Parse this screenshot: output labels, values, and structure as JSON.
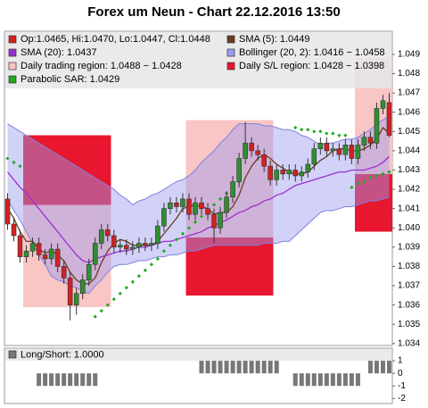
{
  "chart_data": [
    {
      "type": "candlestick",
      "title": "Forex um Neun - Chart 22.12.2016 13:50",
      "candle_legend": "Op:1.0465, Hi:1.0470, Lo:1.0447, Cl:1.0448",
      "up_color": "#2f8f2f",
      "down_color": "#d42020",
      "open": [
        1.0415,
        1.0402,
        1.0396,
        1.0385,
        1.0388,
        1.0392,
        1.0386,
        1.0384,
        1.0389,
        1.038,
        1.0374,
        1.036,
        1.0366,
        1.0373,
        1.0381,
        1.0392,
        1.0399,
        1.0396,
        1.039,
        1.0391,
        1.0389,
        1.039,
        1.0392,
        1.0391,
        1.0392,
        1.0401,
        1.041,
        1.0413,
        1.0411,
        1.0415,
        1.0407,
        1.0413,
        1.041,
        1.0407,
        1.04,
        1.0408,
        1.0416,
        1.0424,
        1.0436,
        1.0444,
        1.044,
        1.0438,
        1.0432,
        1.0425,
        1.043,
        1.0428,
        1.043,
        1.0427,
        1.0429,
        1.0433,
        1.0441,
        1.0444,
        1.044,
        1.0441,
        1.0438,
        1.0443,
        1.0436,
        1.0443,
        1.0447,
        1.0444,
        1.0462,
        1.0465
      ],
      "high": [
        1.0418,
        1.0405,
        1.0399,
        1.0391,
        1.0395,
        1.0395,
        1.0389,
        1.0392,
        1.0392,
        1.0383,
        1.0377,
        1.0369,
        1.0376,
        1.0384,
        1.0395,
        1.0402,
        1.0402,
        1.0399,
        1.0394,
        1.0394,
        1.0393,
        1.0395,
        1.0395,
        1.0395,
        1.0404,
        1.0413,
        1.0416,
        1.0416,
        1.0418,
        1.0418,
        1.0416,
        1.0416,
        1.0413,
        1.041,
        1.0411,
        1.0419,
        1.0427,
        1.0439,
        1.0455,
        1.0447,
        1.0443,
        1.0441,
        1.0435,
        1.0433,
        1.0433,
        1.0433,
        1.0433,
        1.0432,
        1.0436,
        1.0444,
        1.0447,
        1.0447,
        1.0444,
        1.0444,
        1.0446,
        1.0446,
        1.0446,
        1.045,
        1.045,
        1.0465,
        1.0469,
        1.047
      ],
      "low": [
        1.0399,
        1.0393,
        1.0382,
        1.0382,
        1.0385,
        1.0383,
        1.0381,
        1.0381,
        1.0377,
        1.0371,
        1.0352,
        1.0355,
        1.0363,
        1.037,
        1.0378,
        1.0389,
        1.0393,
        1.0387,
        1.0387,
        1.0386,
        1.0386,
        1.0387,
        1.0388,
        1.0388,
        1.0389,
        1.0398,
        1.0407,
        1.0408,
        1.0408,
        1.0404,
        1.0404,
        1.0407,
        1.0404,
        1.0392,
        1.0397,
        1.0405,
        1.0413,
        1.0421,
        1.0433,
        1.0437,
        1.0435,
        1.0429,
        1.0422,
        1.0422,
        1.0425,
        1.0425,
        1.0424,
        1.0424,
        1.0426,
        1.043,
        1.0438,
        1.0437,
        1.0437,
        1.0435,
        1.0435,
        1.0433,
        1.0433,
        1.044,
        1.0441,
        1.0441,
        1.0459,
        1.0447
      ],
      "close": [
        1.0402,
        1.0396,
        1.0385,
        1.0388,
        1.0392,
        1.0386,
        1.0384,
        1.0389,
        1.038,
        1.0374,
        1.036,
        1.0366,
        1.0373,
        1.0381,
        1.0392,
        1.0399,
        1.0396,
        1.039,
        1.0391,
        1.0389,
        1.039,
        1.0392,
        1.0391,
        1.0392,
        1.0401,
        1.041,
        1.0413,
        1.0411,
        1.0415,
        1.0407,
        1.0413,
        1.041,
        1.0407,
        1.04,
        1.0408,
        1.0416,
        1.0424,
        1.0436,
        1.0444,
        1.044,
        1.0438,
        1.0432,
        1.0425,
        1.043,
        1.0428,
        1.043,
        1.0427,
        1.0429,
        1.0433,
        1.0441,
        1.0444,
        1.044,
        1.0441,
        1.0438,
        1.0443,
        1.0436,
        1.0443,
        1.0447,
        1.0444,
        1.0462,
        1.0466,
        1.0448
      ],
      "series": [
        {
          "name": "SMA (5): 1.0449",
          "kind": "line",
          "color": "#6b3b1b",
          "values": [
            1.041,
            1.0405,
            1.0398,
            1.0393,
            1.0393,
            1.0389,
            1.0387,
            1.0388,
            1.0386,
            1.0383,
            1.0377,
            1.0373,
            1.0371,
            1.0371,
            1.0374,
            1.0382,
            1.0388,
            1.0392,
            1.0394,
            1.0393,
            1.0391,
            1.0391,
            1.0391,
            1.0391,
            1.0393,
            1.0397,
            1.0401,
            1.0405,
            1.041,
            1.0411,
            1.0412,
            1.0411,
            1.041,
            1.0407,
            1.0408,
            1.0408,
            1.0411,
            1.0417,
            1.0426,
            1.0432,
            1.0436,
            1.0438,
            1.0436,
            1.0433,
            1.0431,
            1.0429,
            1.0428,
            1.0428,
            1.0429,
            1.0432,
            1.0435,
            1.0437,
            1.044,
            1.0441,
            1.0441,
            1.044,
            1.044,
            1.0441,
            1.0443,
            1.0446,
            1.0452,
            1.0449
          ]
        },
        {
          "name": "SMA (20): 1.0437",
          "kind": "line",
          "color": "#9a30d0",
          "values": [
            1.0429,
            1.0425,
            1.0421,
            1.0418,
            1.0414,
            1.041,
            1.0406,
            1.0402,
            1.0398,
            1.0394,
            1.039,
            1.0386,
            1.0383,
            1.0382,
            1.0384,
            1.0385,
            1.0386,
            1.0387,
            1.0388,
            1.0388,
            1.0389,
            1.039,
            1.039,
            1.0391,
            1.0392,
            1.0393,
            1.0393,
            1.0394,
            1.0395,
            1.0396,
            1.0397,
            1.0398,
            1.04,
            1.0401,
            1.0403,
            1.0404,
            1.0406,
            1.0408,
            1.0409,
            1.0411,
            1.0412,
            1.0414,
            1.0415,
            1.0417,
            1.0418,
            1.042,
            1.0422,
            1.0423,
            1.0424,
            1.0425,
            1.0426,
            1.0427,
            1.0428,
            1.0429,
            1.0429,
            1.043,
            1.043,
            1.043,
            1.0431,
            1.0432,
            1.0434,
            1.0437
          ]
        },
        {
          "name": "Bollinger (20, 2): 1.0416 − 1.0458",
          "kind": "band",
          "color": "#9c9cf0",
          "lower": [
            1.0415,
            1.0409,
            1.0404,
            1.0398,
            1.0392,
            1.0386,
            1.0381,
            1.0375,
            1.0373,
            1.0372,
            1.037,
            1.0369,
            1.0367,
            1.0366,
            1.037,
            1.0373,
            1.0377,
            1.038,
            1.0381,
            1.0381,
            1.0382,
            1.0383,
            1.0383,
            1.0384,
            1.0385,
            1.0385,
            1.0386,
            1.0386,
            1.0387,
            1.0388,
            1.0388,
            1.0389,
            1.039,
            1.0391,
            1.0391,
            1.0391,
            1.0391,
            1.0391,
            1.0391,
            1.0391,
            1.0391,
            1.0392,
            1.0392,
            1.0392,
            1.0393,
            1.0393,
            1.0396,
            1.0399,
            1.0402,
            1.0405,
            1.0408,
            1.0409,
            1.0409,
            1.041,
            1.0411,
            1.0411,
            1.0412,
            1.0413,
            1.0414,
            1.0414,
            1.0415,
            1.0416
          ],
          "upper": [
            1.0454,
            1.0452,
            1.045,
            1.0448,
            1.0446,
            1.0444,
            1.0442,
            1.044,
            1.0438,
            1.0436,
            1.0434,
            1.0432,
            1.043,
            1.0428,
            1.0426,
            1.0424,
            1.0422,
            1.042,
            1.0417,
            1.0415,
            1.0412,
            1.0414,
            1.0415,
            1.0417,
            1.0418,
            1.042,
            1.0422,
            1.0424,
            1.0425,
            1.0427,
            1.043,
            1.0434,
            1.0437,
            1.044,
            1.0444,
            1.0447,
            1.0451,
            1.0454,
            1.0454,
            1.0454,
            1.0454,
            1.0453,
            1.0453,
            1.0452,
            1.0451,
            1.0451,
            1.045,
            1.0448,
            1.0447,
            1.0445,
            1.0443,
            1.0444,
            1.0444,
            1.0445,
            1.0446,
            1.0446,
            1.0447,
            1.0449,
            1.0451,
            1.0454,
            1.0456,
            1.0458
          ]
        },
        {
          "name": "Daily trading region: 1.0488 − 1.0428",
          "kind": "region",
          "color": "#f9c5c5",
          "lower": [
            null,
            null,
            null,
            1.0359,
            1.0359,
            1.0359,
            1.0359,
            1.0359,
            1.0359,
            1.0359,
            1.0359,
            1.0359,
            1.0359,
            1.0359,
            1.0359,
            1.0359,
            1.0359,
            null,
            null,
            null,
            null,
            null,
            null,
            null,
            null,
            null,
            null,
            null,
            null,
            1.0365,
            1.0365,
            1.0365,
            1.0365,
            1.0365,
            1.0365,
            1.0365,
            1.0365,
            1.0365,
            1.0365,
            1.0365,
            1.0365,
            1.0365,
            1.0365,
            null,
            null,
            null,
            null,
            null,
            null,
            null,
            null,
            null,
            null,
            null,
            null,
            null,
            1.0428,
            1.0428,
            1.0428,
            1.0428,
            1.0428,
            1.0428
          ],
          "upper": [
            null,
            null,
            null,
            1.0448,
            1.0448,
            1.0448,
            1.0448,
            1.0448,
            1.0448,
            1.0448,
            1.0448,
            1.0448,
            1.0448,
            1.0448,
            1.0448,
            1.0448,
            1.0448,
            null,
            null,
            null,
            null,
            null,
            null,
            null,
            null,
            null,
            null,
            null,
            null,
            1.0456,
            1.0456,
            1.0456,
            1.0456,
            1.0456,
            1.0456,
            1.0456,
            1.0456,
            1.0456,
            1.0456,
            1.0456,
            1.0456,
            1.0456,
            1.0456,
            null,
            null,
            null,
            null,
            null,
            null,
            null,
            null,
            null,
            null,
            null,
            null,
            null,
            1.0488,
            1.0488,
            1.0488,
            1.0488,
            1.0488,
            1.0488
          ]
        },
        {
          "name": "Daily S/L region: 1.0428 − 1.0398",
          "kind": "region",
          "color": "#e8162e",
          "lower": [
            null,
            null,
            null,
            1.0412,
            1.0412,
            1.0412,
            1.0412,
            1.0412,
            1.0412,
            1.0412,
            1.0412,
            1.0412,
            1.0412,
            1.0412,
            1.0412,
            1.0412,
            1.0412,
            null,
            null,
            null,
            null,
            null,
            null,
            null,
            null,
            null,
            null,
            null,
            null,
            1.0365,
            1.0365,
            1.0365,
            1.0365,
            1.0365,
            1.0365,
            1.0365,
            1.0365,
            1.0365,
            1.0365,
            1.0365,
            1.0365,
            1.0365,
            1.0365,
            null,
            null,
            null,
            null,
            null,
            null,
            null,
            null,
            null,
            null,
            null,
            null,
            null,
            1.0398,
            1.0398,
            1.0398,
            1.0398,
            1.0398,
            1.0398
          ],
          "upper": [
            null,
            null,
            null,
            1.0448,
            1.0448,
            1.0448,
            1.0448,
            1.0448,
            1.0448,
            1.0448,
            1.0448,
            1.0448,
            1.0448,
            1.0448,
            1.0448,
            1.0448,
            1.0448,
            null,
            null,
            null,
            null,
            null,
            null,
            null,
            null,
            null,
            null,
            null,
            null,
            1.0395,
            1.0395,
            1.0395,
            1.0395,
            1.0395,
            1.0395,
            1.0395,
            1.0395,
            1.0395,
            1.0395,
            1.0395,
            1.0395,
            1.0395,
            1.0395,
            null,
            null,
            null,
            null,
            null,
            null,
            null,
            null,
            null,
            null,
            null,
            null,
            null,
            1.0428,
            1.0428,
            1.0428,
            1.0428,
            1.0428,
            1.0428
          ]
        },
        {
          "name": "Parabolic SAR: 1.0429",
          "kind": "dots",
          "color": "#22aa22",
          "values": [
            1.0436,
            1.0434,
            1.0432,
            null,
            null,
            null,
            null,
            null,
            null,
            null,
            null,
            null,
            null,
            null,
            1.0354,
            1.0357,
            1.036,
            1.0363,
            1.0366,
            1.0369,
            1.0372,
            1.0375,
            1.0378,
            1.0381,
            1.0384,
            1.0388,
            1.0391,
            1.0394,
            1.0397,
            1.04,
            1.0403,
            1.0406,
            1.0409,
            1.0412,
            1.0415,
            1.0418,
            1.0421,
            1.0424,
            null,
            null,
            null,
            null,
            null,
            null,
            null,
            null,
            1.0452,
            1.0451,
            1.0451,
            1.045,
            1.045,
            1.0449,
            1.0449,
            1.0448,
            1.0448,
            1.0421,
            1.0423,
            1.0424,
            1.0426,
            1.0427,
            1.0428,
            1.0429
          ]
        }
      ],
      "ylim": [
        1.0339,
        1.0502
      ],
      "yticks": [
        1.034,
        1.035,
        1.036,
        1.037,
        1.038,
        1.039,
        {
          "value": 1.04,
          "label": "1.040"
        },
        1.041,
        1.042,
        1.043,
        1.044,
        1.045,
        1.046,
        1.047,
        1.048,
        1.049
      ]
    },
    {
      "type": "bar",
      "legend": "Long/Short: 1.0000",
      "color": "#777777",
      "values": [
        0,
        0,
        0,
        0,
        0,
        -1,
        -1,
        -1,
        -1,
        -1,
        -1,
        -1,
        -1,
        -1,
        -1,
        0,
        0,
        0,
        0,
        0,
        0,
        0,
        0,
        0,
        0,
        0,
        0,
        0,
        0,
        0,
        0,
        1,
        1,
        1,
        1,
        1,
        1,
        1,
        1,
        1,
        1,
        1,
        1,
        1,
        0,
        0,
        -1,
        -1,
        -1,
        -1,
        -1,
        -1,
        -1,
        -1,
        -1,
        -1,
        -1,
        0,
        1,
        1,
        1,
        1
      ],
      "ylim": [
        -2.4,
        2
      ],
      "yticks": [
        1,
        0,
        -1,
        -2
      ]
    }
  ]
}
